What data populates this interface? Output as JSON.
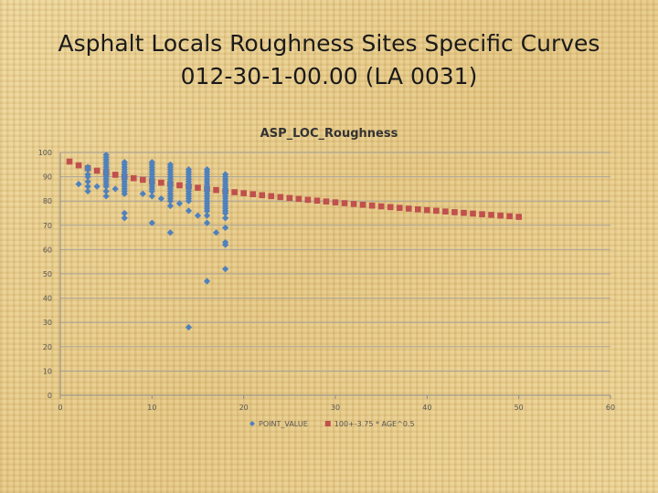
{
  "slide": {
    "title_line1": "Asphalt Locals Roughness Sites Specific Curves",
    "title_line2": "012-30-1-00.00 (LA 0031)"
  },
  "chart_data": {
    "type": "scatter",
    "title": "ASP_LOC_Roughness",
    "xlim": [
      0,
      60
    ],
    "ylim": [
      0,
      100
    ],
    "x_ticks": [
      0,
      10,
      20,
      30,
      40,
      50,
      60
    ],
    "y_ticks": [
      0,
      10,
      20,
      30,
      40,
      50,
      60,
      70,
      80,
      90,
      100
    ],
    "grid": "horizontal",
    "legend_position": "bottom",
    "series": [
      {
        "name": "POINT_VALUE",
        "color": "#4f81bd",
        "marker": "diamond",
        "points": [
          [
            2,
            87
          ],
          [
            3,
            84
          ],
          [
            3,
            86
          ],
          [
            3,
            88
          ],
          [
            3,
            90
          ],
          [
            3,
            91
          ],
          [
            3,
            93
          ],
          [
            3,
            94
          ],
          [
            4,
            86
          ],
          [
            5,
            82
          ],
          [
            5,
            84
          ],
          [
            5,
            86
          ],
          [
            5,
            87
          ],
          [
            5,
            88
          ],
          [
            5,
            89
          ],
          [
            5,
            90
          ],
          [
            5,
            91
          ],
          [
            5,
            92
          ],
          [
            5,
            93
          ],
          [
            5,
            94
          ],
          [
            5,
            95
          ],
          [
            5,
            96
          ],
          [
            5,
            97
          ],
          [
            5,
            98
          ],
          [
            5,
            99
          ],
          [
            6,
            85
          ],
          [
            7,
            73
          ],
          [
            7,
            75
          ],
          [
            7,
            83
          ],
          [
            7,
            84
          ],
          [
            7,
            85
          ],
          [
            7,
            86
          ],
          [
            7,
            87
          ],
          [
            7,
            88
          ],
          [
            7,
            89
          ],
          [
            7,
            90
          ],
          [
            7,
            91
          ],
          [
            7,
            92
          ],
          [
            7,
            93
          ],
          [
            7,
            94
          ],
          [
            7,
            95
          ],
          [
            7,
            96
          ],
          [
            9,
            83
          ],
          [
            10,
            71
          ],
          [
            10,
            82
          ],
          [
            10,
            84
          ],
          [
            10,
            85
          ],
          [
            10,
            86
          ],
          [
            10,
            87
          ],
          [
            10,
            88
          ],
          [
            10,
            89
          ],
          [
            10,
            90
          ],
          [
            10,
            91
          ],
          [
            10,
            92
          ],
          [
            10,
            93
          ],
          [
            10,
            94
          ],
          [
            10,
            95
          ],
          [
            10,
            96
          ],
          [
            11,
            81
          ],
          [
            12,
            67
          ],
          [
            12,
            78
          ],
          [
            12,
            80
          ],
          [
            12,
            81
          ],
          [
            12,
            82
          ],
          [
            12,
            83
          ],
          [
            12,
            84
          ],
          [
            12,
            85
          ],
          [
            12,
            86
          ],
          [
            12,
            87
          ],
          [
            12,
            88
          ],
          [
            12,
            89
          ],
          [
            12,
            90
          ],
          [
            12,
            91
          ],
          [
            12,
            92
          ],
          [
            12,
            93
          ],
          [
            12,
            94
          ],
          [
            12,
            95
          ],
          [
            13,
            79
          ],
          [
            14,
            28
          ],
          [
            14,
            76
          ],
          [
            14,
            80
          ],
          [
            14,
            81
          ],
          [
            14,
            82
          ],
          [
            14,
            83
          ],
          [
            14,
            84
          ],
          [
            14,
            85
          ],
          [
            14,
            86
          ],
          [
            14,
            87
          ],
          [
            14,
            88
          ],
          [
            14,
            89
          ],
          [
            14,
            90
          ],
          [
            14,
            91
          ],
          [
            14,
            92
          ],
          [
            14,
            93
          ],
          [
            15,
            74
          ],
          [
            16,
            47
          ],
          [
            16,
            71
          ],
          [
            16,
            74
          ],
          [
            16,
            76
          ],
          [
            16,
            77
          ],
          [
            16,
            78
          ],
          [
            16,
            79
          ],
          [
            16,
            80
          ],
          [
            16,
            81
          ],
          [
            16,
            82
          ],
          [
            16,
            83
          ],
          [
            16,
            84
          ],
          [
            16,
            85
          ],
          [
            16,
            86
          ],
          [
            16,
            87
          ],
          [
            16,
            88
          ],
          [
            16,
            89
          ],
          [
            16,
            90
          ],
          [
            16,
            91
          ],
          [
            16,
            92
          ],
          [
            16,
            93
          ],
          [
            17,
            67
          ],
          [
            18,
            52
          ],
          [
            18,
            62
          ],
          [
            18,
            63
          ],
          [
            18,
            69
          ],
          [
            18,
            73
          ],
          [
            18,
            75
          ],
          [
            18,
            76
          ],
          [
            18,
            77
          ],
          [
            18,
            78
          ],
          [
            18,
            79
          ],
          [
            18,
            80
          ],
          [
            18,
            81
          ],
          [
            18,
            82
          ],
          [
            18,
            83
          ],
          [
            18,
            84
          ],
          [
            18,
            85
          ],
          [
            18,
            86
          ],
          [
            18,
            87
          ],
          [
            18,
            88
          ],
          [
            18,
            89
          ],
          [
            18,
            90
          ],
          [
            18,
            91
          ]
        ]
      },
      {
        "name": "100+-3.75 * AGE^0.5",
        "color": "#c0504d",
        "marker": "square",
        "points": [
          [
            1,
            96.25
          ],
          [
            2,
            94.7
          ],
          [
            3,
            93.5
          ],
          [
            4,
            92.5
          ],
          [
            5,
            91.61
          ],
          [
            6,
            90.81
          ],
          [
            7,
            90.08
          ],
          [
            8,
            89.39
          ],
          [
            9,
            88.75
          ],
          [
            10,
            88.14
          ],
          [
            11,
            87.56
          ],
          [
            12,
            87.01
          ],
          [
            13,
            86.48
          ],
          [
            14,
            85.97
          ],
          [
            15,
            85.48
          ],
          [
            16,
            85.0
          ],
          [
            17,
            84.54
          ],
          [
            18,
            84.09
          ],
          [
            19,
            83.65
          ],
          [
            20,
            83.23
          ],
          [
            21,
            82.82
          ],
          [
            22,
            82.41
          ],
          [
            23,
            82.02
          ],
          [
            24,
            81.63
          ],
          [
            25,
            81.25
          ],
          [
            26,
            80.88
          ],
          [
            27,
            80.51
          ],
          [
            28,
            80.16
          ],
          [
            29,
            79.81
          ],
          [
            30,
            79.46
          ],
          [
            31,
            79.12
          ],
          [
            32,
            78.79
          ],
          [
            33,
            78.46
          ],
          [
            34,
            78.13
          ],
          [
            35,
            77.81
          ],
          [
            36,
            77.5
          ],
          [
            37,
            77.19
          ],
          [
            38,
            76.88
          ],
          [
            39,
            76.58
          ],
          [
            40,
            76.28
          ],
          [
            41,
            75.99
          ],
          [
            42,
            75.7
          ],
          [
            43,
            75.41
          ],
          [
            44,
            75.13
          ],
          [
            45,
            74.84
          ],
          [
            46,
            74.57
          ],
          [
            47,
            74.29
          ],
          [
            48,
            74.02
          ],
          [
            49,
            73.75
          ],
          [
            50,
            73.48
          ]
        ]
      }
    ]
  }
}
